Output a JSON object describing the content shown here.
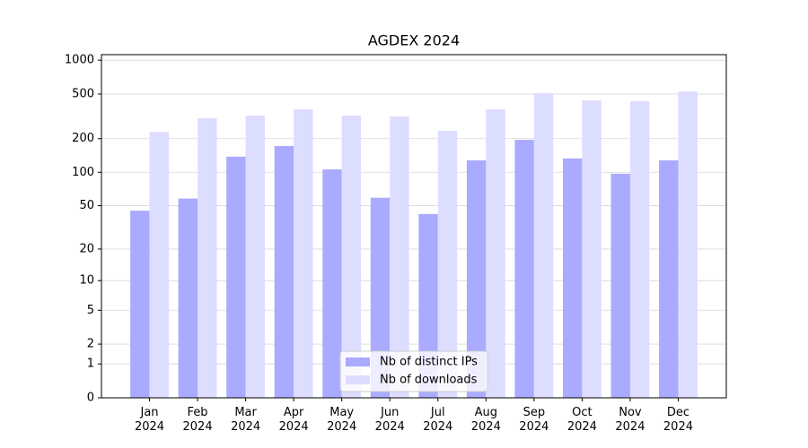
{
  "chart_data": {
    "type": "bar",
    "title": "AGDEX 2024",
    "categories": [
      "Jan\n2024",
      "Feb\n2024",
      "Mar\n2024",
      "Apr\n2024",
      "May\n2024",
      "Jun\n2024",
      "Jul\n2024",
      "Aug\n2024",
      "Sep\n2024",
      "Oct\n2024",
      "Nov\n2024",
      "Dec\n2024"
    ],
    "series": [
      {
        "name": "Nb of distinct IPs",
        "color": "#aaaaff",
        "values": [
          45,
          58,
          138,
          172,
          106,
          59,
          42,
          128,
          195,
          133,
          97,
          128
        ]
      },
      {
        "name": "Nb of downloads",
        "color": "#ddddff",
        "values": [
          230,
          304,
          321,
          365,
          321,
          315,
          235,
          365,
          508,
          439,
          431,
          527
        ]
      }
    ],
    "yscale": "log1p",
    "ylim": [
      0,
      1120
    ],
    "yticks": [
      0,
      1,
      2,
      5,
      10,
      20,
      50,
      100,
      200,
      500,
      1000
    ],
    "grid": true,
    "legend": "lower center"
  }
}
